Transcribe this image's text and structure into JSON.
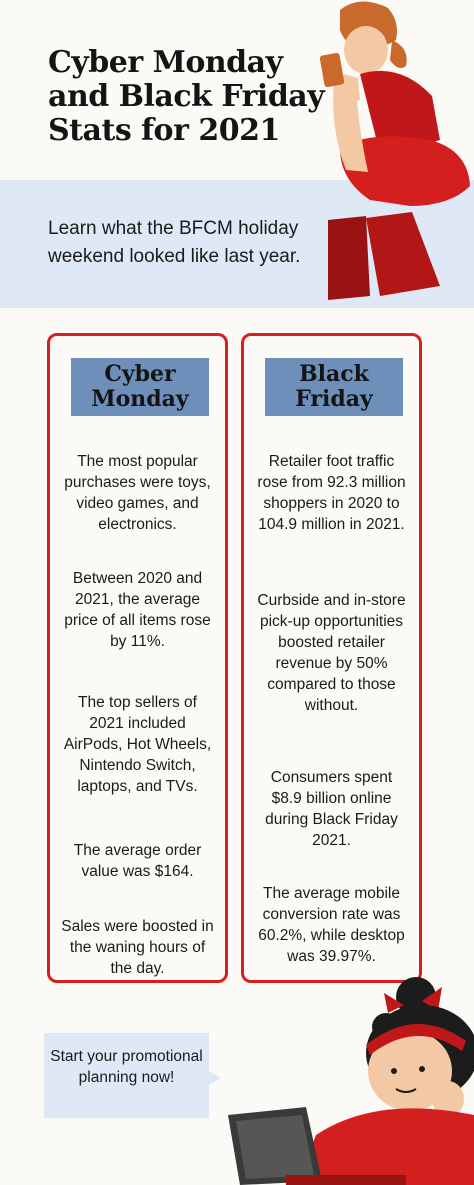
{
  "header": {
    "title": "Cyber Monday and Black Friday Stats for 2021",
    "intro": "Learn what the BFCM holiday weekend looked like last year."
  },
  "columns": [
    {
      "heading": "Cyber Monday",
      "stats": [
        "The most popular purchases were toys, video games, and electronics.",
        "Between 2020 and 2021, the average price of all items rose by 11%.",
        "The top sellers of 2021 included AirPods, Hot Wheels, Nintendo Switch, laptops, and TVs.",
        "The average order value was $164.",
        "Sales were boosted in the waning hours of the day."
      ]
    },
    {
      "heading": "Black Friday",
      "stats": [
        "Retailer foot traffic rose from 92.3 million shoppers in 2020 to 104.9 million in 2021.",
        "Curbside and in-store pick-up opportunities boosted retailer revenue by 50% compared to those without.",
        "Consumers spent $8.9 billion online during Black Friday 2021.",
        "The average mobile conversion rate was 60.2%, while desktop was 39.97%."
      ]
    }
  ],
  "cta": {
    "text": "Start your promotional planning now!"
  },
  "colors": {
    "accent_red": "#d71f1f",
    "header_blue": "#6d8fb9",
    "band_blue": "#dfe8f5",
    "background": "#fbfaf6"
  },
  "icons": [
    "woman-with-phone-illustration",
    "woman-with-laptop-illustration"
  ]
}
